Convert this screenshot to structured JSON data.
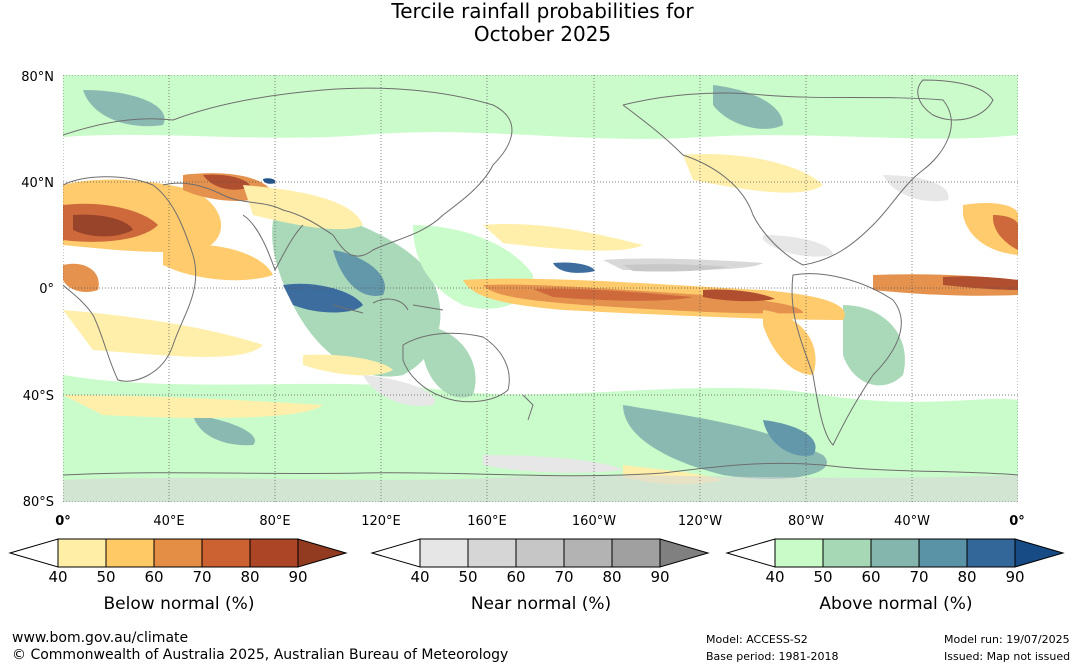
{
  "title": {
    "line1": "Tercile rainfall probabilities for",
    "line2": "October 2025"
  },
  "map": {
    "lat_labels": [
      "80°N",
      "40°N",
      "0°",
      "40°S",
      "80°S"
    ],
    "lon_labels": [
      "0°",
      "40°E",
      "80°E",
      "120°E",
      "160°E",
      "160°W",
      "120°W",
      "80°W",
      "40°W",
      "0°"
    ],
    "colors": {
      "ocean_bg": "#ffffff",
      "grid": "#555555",
      "coast": "#6e6e6e"
    }
  },
  "legends": [
    {
      "title": "Below normal (%)",
      "ticks": [
        "40",
        "50",
        "60",
        "70",
        "80",
        "90"
      ],
      "colors": [
        "#ffffff",
        "#ffefa6",
        "#ffc966",
        "#e38d45",
        "#cc6131",
        "#ac4525",
        "#923b20"
      ]
    },
    {
      "title": "Near normal (%)",
      "ticks": [
        "40",
        "50",
        "60",
        "70",
        "80",
        "90"
      ],
      "colors": [
        "#ffffff",
        "#e6e6e6",
        "#d6d6d6",
        "#c6c6c6",
        "#b3b3b3",
        "#a0a0a0",
        "#808080"
      ]
    },
    {
      "title": "Above normal (%)",
      "ticks": [
        "40",
        "50",
        "60",
        "70",
        "80",
        "90"
      ],
      "colors": [
        "#ffffff",
        "#c8fbc8",
        "#a6d8b6",
        "#84b6ae",
        "#5a93a6",
        "#336699",
        "#174b85"
      ]
    }
  ],
  "footer": {
    "website": "www.bom.gov.au/climate",
    "copyright": "© Commonwealth of Australia 2025, Australian Bureau of Meteorology",
    "model": "Model: ACCESS-S2",
    "base_period": "Base period: 1981-2018",
    "model_run": "Model run: 19/07/2025",
    "issued": "Issued: Map not issued"
  }
}
